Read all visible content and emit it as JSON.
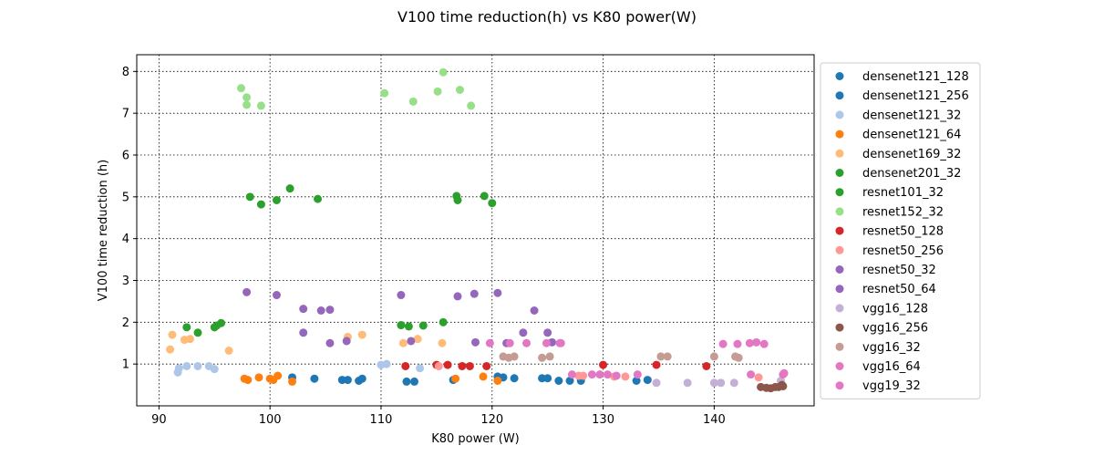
{
  "chart_data": {
    "type": "scatter",
    "title": "V100 time reduction(h) vs K80 power(W)",
    "xlabel": "K80 power (W)",
    "ylabel": "V100 time reduction (h)",
    "xlim": [
      88,
      149
    ],
    "ylim": [
      0.0,
      8.4
    ],
    "xticks": [
      90,
      100,
      110,
      120,
      130,
      140
    ],
    "yticks": [
      1,
      2,
      3,
      4,
      5,
      6,
      7,
      8
    ],
    "grid": true,
    "grid_style": "dotted",
    "legend_position": "outside-right",
    "series": [
      {
        "name": "densenet121_128",
        "color": "#1f77b4",
        "points": [
          [
            102,
            0.68
          ],
          [
            120.5,
            0.7
          ],
          [
            121,
            0.68
          ],
          [
            122,
            0.66
          ],
          [
            124.5,
            0.66
          ],
          [
            125,
            0.66
          ],
          [
            127,
            0.6
          ],
          [
            128,
            0.6
          ]
        ]
      },
      {
        "name": "densenet121_256",
        "color": "#1f77b4",
        "points": [
          [
            104,
            0.65
          ],
          [
            106.5,
            0.62
          ],
          [
            107,
            0.62
          ],
          [
            108,
            0.6
          ],
          [
            108.3,
            0.65
          ],
          [
            112.3,
            0.58
          ],
          [
            113,
            0.58
          ],
          [
            116.5,
            0.62
          ],
          [
            126,
            0.6
          ],
          [
            133,
            0.6
          ],
          [
            134,
            0.62
          ]
        ]
      },
      {
        "name": "densenet121_32",
        "color": "#aec7e8",
        "points": [
          [
            91.7,
            0.8
          ],
          [
            91.8,
            0.9
          ],
          [
            92.5,
            0.95
          ],
          [
            93.5,
            0.95
          ],
          [
            94.5,
            0.95
          ],
          [
            95,
            0.88
          ],
          [
            110,
            0.98
          ],
          [
            110.5,
            1.0
          ],
          [
            113.5,
            0.9
          ]
        ]
      },
      {
        "name": "densenet121_64",
        "color": "#ff7f0e",
        "points": [
          [
            97.7,
            0.65
          ],
          [
            98,
            0.62
          ],
          [
            99,
            0.68
          ],
          [
            100,
            0.65
          ],
          [
            100.3,
            0.62
          ],
          [
            100.7,
            0.72
          ],
          [
            102,
            0.58
          ],
          [
            116.7,
            0.65
          ],
          [
            119.2,
            0.7
          ],
          [
            120.5,
            0.6
          ]
        ]
      },
      {
        "name": "densenet169_32",
        "color": "#ffbb78",
        "points": [
          [
            91,
            1.35
          ],
          [
            91.2,
            1.7
          ],
          [
            92.3,
            1.58
          ],
          [
            92.8,
            1.6
          ],
          [
            96.3,
            1.32
          ],
          [
            107,
            1.65
          ],
          [
            108.3,
            1.7
          ],
          [
            112,
            1.5
          ],
          [
            113.3,
            1.6
          ],
          [
            115.5,
            1.5
          ]
        ]
      },
      {
        "name": "densenet201_32",
        "color": "#2ca02c",
        "points": [
          [
            92.5,
            1.88
          ],
          [
            93.5,
            1.75
          ],
          [
            95,
            1.88
          ],
          [
            95.2,
            1.92
          ],
          [
            95.6,
            1.98
          ],
          [
            111.8,
            1.93
          ],
          [
            112.5,
            1.9
          ],
          [
            113.8,
            1.92
          ],
          [
            115.6,
            2.0
          ]
        ]
      },
      {
        "name": "resnet101_32",
        "color": "#2ca02c",
        "points": [
          [
            98.2,
            5.0
          ],
          [
            99.2,
            4.82
          ],
          [
            100.6,
            4.92
          ],
          [
            101.8,
            5.2
          ],
          [
            104.3,
            4.95
          ],
          [
            116.8,
            5.02
          ],
          [
            116.9,
            4.92
          ],
          [
            119.3,
            5.02
          ],
          [
            120,
            4.85
          ]
        ]
      },
      {
        "name": "resnet152_32",
        "color": "#98df8a",
        "points": [
          [
            97.4,
            7.6
          ],
          [
            97.9,
            7.38
          ],
          [
            97.9,
            7.2
          ],
          [
            99.2,
            7.18
          ],
          [
            110.3,
            7.48
          ],
          [
            112.9,
            7.28
          ],
          [
            115.1,
            7.52
          ],
          [
            115.6,
            7.98
          ],
          [
            117.1,
            7.56
          ],
          [
            118.1,
            7.18
          ]
        ]
      },
      {
        "name": "resnet50_128",
        "color": "#d62728",
        "points": [
          [
            112.2,
            0.95
          ],
          [
            115,
            0.98
          ],
          [
            116,
            0.98
          ],
          [
            117.3,
            0.95
          ],
          [
            118,
            0.95
          ],
          [
            119.5,
            0.95
          ],
          [
            130,
            0.98
          ],
          [
            134.8,
            0.98
          ],
          [
            139.3,
            0.95
          ]
        ]
      },
      {
        "name": "resnet50_256",
        "color": "#ff9896",
        "points": [
          [
            115.2,
            0.95
          ],
          [
            127.8,
            0.72
          ],
          [
            128.2,
            0.72
          ],
          [
            131,
            0.7
          ],
          [
            132,
            0.7
          ],
          [
            144,
            0.68
          ]
        ]
      },
      {
        "name": "resnet50_32",
        "color": "#9467bd",
        "points": [
          [
            97.9,
            2.72
          ],
          [
            100.6,
            2.65
          ],
          [
            103,
            2.32
          ],
          [
            103,
            1.75
          ],
          [
            104.6,
            2.28
          ],
          [
            105.4,
            1.5
          ],
          [
            105.4,
            2.3
          ],
          [
            106.9,
            1.55
          ],
          [
            111.8,
            2.65
          ],
          [
            112.7,
            1.55
          ],
          [
            116.9,
            2.62
          ],
          [
            118.4,
            2.68
          ],
          [
            118.5,
            1.52
          ],
          [
            120.5,
            2.7
          ],
          [
            122.8,
            1.75
          ],
          [
            123.8,
            2.28
          ],
          [
            125,
            1.75
          ],
          [
            125.4,
            1.52
          ]
        ]
      },
      {
        "name": "resnet50_64",
        "color": "#9467bd",
        "points": [
          [
            121.3,
            1.5
          ]
        ]
      },
      {
        "name": "vgg16_128",
        "color": "#c5b0d5",
        "points": [
          [
            134.8,
            0.55
          ],
          [
            137.6,
            0.55
          ],
          [
            140,
            0.55
          ],
          [
            140.6,
            0.55
          ],
          [
            141.8,
            0.55
          ],
          [
            146,
            0.6
          ]
        ]
      },
      {
        "name": "vgg16_256",
        "color": "#8c564b",
        "points": [
          [
            144.2,
            0.45
          ],
          [
            144.7,
            0.43
          ],
          [
            145.1,
            0.42
          ],
          [
            145.5,
            0.45
          ],
          [
            145.8,
            0.45
          ],
          [
            146.1,
            0.5
          ],
          [
            146.2,
            0.47
          ]
        ]
      },
      {
        "name": "vgg16_32",
        "color": "#c49c94",
        "points": [
          [
            121,
            1.18
          ],
          [
            121.5,
            1.15
          ],
          [
            122,
            1.18
          ],
          [
            124.5,
            1.15
          ],
          [
            125.2,
            1.18
          ],
          [
            135.2,
            1.18
          ],
          [
            135.8,
            1.18
          ],
          [
            140,
            1.18
          ],
          [
            141.9,
            1.18
          ],
          [
            142.2,
            1.15
          ]
        ]
      },
      {
        "name": "vgg16_64",
        "color": "#e377c2",
        "points": [
          [
            119.8,
            1.5
          ],
          [
            121.6,
            1.5
          ],
          [
            123.1,
            1.5
          ],
          [
            124.9,
            1.5
          ],
          [
            126.2,
            1.5
          ],
          [
            127.2,
            0.75
          ],
          [
            129,
            0.75
          ],
          [
            129.7,
            0.75
          ],
          [
            130.4,
            0.75
          ],
          [
            131.2,
            0.72
          ],
          [
            133.1,
            0.75
          ],
          [
            140.8,
            1.48
          ],
          [
            142.1,
            1.48
          ],
          [
            143.2,
            1.5
          ],
          [
            143.8,
            1.52
          ],
          [
            144.5,
            1.48
          ],
          [
            146.2,
            0.75
          ]
        ]
      },
      {
        "name": "vgg19_32",
        "color": "#e377c2",
        "points": [
          [
            126.1,
            1.5
          ],
          [
            143.3,
            0.75
          ],
          [
            146.3,
            0.78
          ]
        ]
      }
    ]
  }
}
